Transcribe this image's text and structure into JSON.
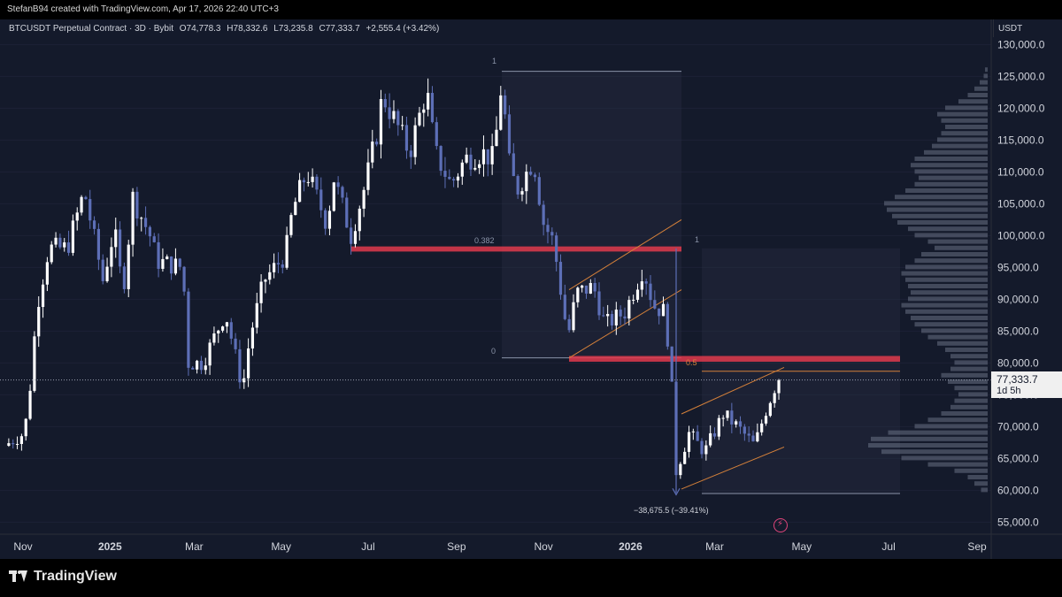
{
  "header": {
    "attribution": "StefanB94 created with TradingView.com, Apr 17, 2026 22:40 UTC+3"
  },
  "footer": {
    "brand": "TradingView"
  },
  "colors": {
    "background": "#141a2b",
    "bull_candle": "#ffffff",
    "bear_candle": "#5d6fb7",
    "resistance_zone": "#e03a4c",
    "channel": "#d4803a",
    "fib_box": "#8a93a8"
  },
  "chart_data": {
    "type": "candlestick",
    "title": "BTCUSDT Perpetual Contract · 3D · Bybit",
    "ohlc": {
      "open_label": "O74,778.3",
      "high_label": "H78,332.6",
      "low_label": "L73,235.8",
      "close_label": "C77,333.7",
      "change_label": "+2,555.4 (+3.42%)"
    },
    "y_axis": {
      "unit": "USDT",
      "ylim": [
        52000,
        132000
      ],
      "ticks": [
        55000,
        60000,
        65000,
        70000,
        75000,
        80000,
        85000,
        90000,
        95000,
        100000,
        105000,
        110000,
        115000,
        120000,
        125000,
        130000
      ],
      "tick_labels": [
        "55,000.0",
        "60,000.0",
        "65,000.0",
        "70,000.0",
        "75,000.0",
        "80,000.0",
        "85,000.0",
        "90,000.0",
        "95,000.0",
        "100,000.0",
        "105,000.0",
        "110,000.0",
        "115,000.0",
        "120,000.0",
        "125,000.0",
        "130,000.0"
      ]
    },
    "x_axis": {
      "range": [
        "2024-10-22",
        "2026-09-20"
      ],
      "ticks": [
        {
          "date": "2024-11-01",
          "label": "Nov",
          "bold": false
        },
        {
          "date": "2025-01-01",
          "label": "2025",
          "bold": true
        },
        {
          "date": "2025-03-01",
          "label": "Mar",
          "bold": false
        },
        {
          "date": "2025-05-01",
          "label": "May",
          "bold": false
        },
        {
          "date": "2025-07-01",
          "label": "Jul",
          "bold": false
        },
        {
          "date": "2025-09-01",
          "label": "Sep",
          "bold": false
        },
        {
          "date": "2025-11-01",
          "label": "Nov",
          "bold": false
        },
        {
          "date": "2026-01-01",
          "label": "2026",
          "bold": true
        },
        {
          "date": "2026-03-01",
          "label": "Mar",
          "bold": false
        },
        {
          "date": "2026-05-01",
          "label": "May",
          "bold": false
        },
        {
          "date": "2026-07-01",
          "label": "Jul",
          "bold": false
        },
        {
          "date": "2026-09-01",
          "label": "Sep",
          "bold": false
        }
      ]
    },
    "price_path": [
      [
        "2024-10-22",
        67000
      ],
      [
        "2024-11-05",
        69000
      ],
      [
        "2024-11-11",
        80000
      ],
      [
        "2024-11-13",
        88000
      ],
      [
        "2024-11-22",
        98000
      ],
      [
        "2024-12-05",
        98000
      ],
      [
        "2024-12-17",
        107000
      ],
      [
        "2024-12-30",
        93000
      ],
      [
        "2025-01-07",
        101000
      ],
      [
        "2025-01-13",
        91000
      ],
      [
        "2025-01-20",
        106000
      ],
      [
        "2025-02-01",
        100000
      ],
      [
        "2025-02-06",
        96000
      ],
      [
        "2025-02-24",
        95000
      ],
      [
        "2025-02-28",
        80000
      ],
      [
        "2025-03-10",
        80000
      ],
      [
        "2025-03-18",
        84000
      ],
      [
        "2025-03-26",
        88000
      ],
      [
        "2025-04-07",
        76000
      ],
      [
        "2025-04-12",
        84000
      ],
      [
        "2025-04-22",
        93000
      ],
      [
        "2025-05-07",
        97000
      ],
      [
        "2025-05-12",
        104000
      ],
      [
        "2025-05-22",
        110000
      ],
      [
        "2025-06-05",
        102000
      ],
      [
        "2025-06-10",
        109000
      ],
      [
        "2025-06-22",
        100000
      ],
      [
        "2025-07-02",
        108000
      ],
      [
        "2025-07-10",
        116000
      ],
      [
        "2025-07-14",
        122000
      ],
      [
        "2025-07-25",
        117000
      ],
      [
        "2025-08-02",
        113000
      ],
      [
        "2025-08-14",
        123000
      ],
      [
        "2025-08-20",
        113000
      ],
      [
        "2025-08-31",
        108000
      ],
      [
        "2025-09-10",
        112000
      ],
      [
        "2025-09-22",
        113000
      ],
      [
        "2025-09-30",
        112000
      ],
      [
        "2025-10-06",
        125000
      ],
      [
        "2025-10-10",
        112000
      ],
      [
        "2025-10-16",
        107000
      ],
      [
        "2025-10-28",
        112000
      ],
      [
        "2025-11-04",
        102000
      ],
      [
        "2025-11-11",
        99000
      ],
      [
        "2025-11-21",
        84000
      ],
      [
        "2025-11-27",
        91000
      ],
      [
        "2025-12-09",
        92000
      ],
      [
        "2025-12-17",
        86000
      ],
      [
        "2025-12-31",
        88000
      ],
      [
        "2026-01-13",
        95000
      ],
      [
        "2026-01-20",
        89000
      ],
      [
        "2026-01-28",
        88000
      ],
      [
        "2026-02-01",
        80000
      ],
      [
        "2026-02-05",
        63000
      ],
      [
        "2026-02-14",
        69000
      ],
      [
        "2026-02-25",
        66000
      ],
      [
        "2026-03-10",
        72000
      ],
      [
        "2026-03-20",
        70000
      ],
      [
        "2026-04-01",
        67000
      ],
      [
        "2026-04-08",
        72000
      ],
      [
        "2026-04-17",
        77333.7
      ]
    ],
    "current_price": {
      "label": "77,333.7",
      "countdown": "1d 5h"
    },
    "fib_retracement": {
      "labels": [
        "1",
        "0.382",
        "0"
      ]
    },
    "fib_box_2": {
      "labels": [
        "1",
        "0.5"
      ]
    },
    "measure": {
      "label": "−38,675.5 (−39.41%)"
    },
    "volume_profile": [
      [
        60000,
        0.05
      ],
      [
        61000,
        0.1
      ],
      [
        62000,
        0.15
      ],
      [
        63000,
        0.25
      ],
      [
        64000,
        0.45
      ],
      [
        65000,
        0.65
      ],
      [
        66000,
        0.8
      ],
      [
        67000,
        0.9
      ],
      [
        68000,
        0.88
      ],
      [
        69000,
        0.75
      ],
      [
        70000,
        0.55
      ],
      [
        71000,
        0.45
      ],
      [
        72000,
        0.35
      ],
      [
        73000,
        0.28
      ],
      [
        74000,
        0.25
      ],
      [
        75000,
        0.22
      ],
      [
        76000,
        0.25
      ],
      [
        77000,
        0.3
      ],
      [
        78000,
        0.35
      ],
      [
        79000,
        0.28
      ],
      [
        80000,
        0.25
      ],
      [
        81000,
        0.28
      ],
      [
        82000,
        0.32
      ],
      [
        83000,
        0.38
      ],
      [
        84000,
        0.45
      ],
      [
        85000,
        0.5
      ],
      [
        86000,
        0.55
      ],
      [
        87000,
        0.58
      ],
      [
        88000,
        0.62
      ],
      [
        89000,
        0.65
      ],
      [
        90000,
        0.6
      ],
      [
        91000,
        0.58
      ],
      [
        92000,
        0.6
      ],
      [
        93000,
        0.62
      ],
      [
        94000,
        0.65
      ],
      [
        95000,
        0.62
      ],
      [
        96000,
        0.55
      ],
      [
        97000,
        0.5
      ],
      [
        98000,
        0.4
      ],
      [
        99000,
        0.45
      ],
      [
        100000,
        0.55
      ],
      [
        101000,
        0.6
      ],
      [
        102000,
        0.68
      ],
      [
        103000,
        0.72
      ],
      [
        104000,
        0.76
      ],
      [
        105000,
        0.78
      ],
      [
        106000,
        0.7
      ],
      [
        107000,
        0.62
      ],
      [
        108000,
        0.55
      ],
      [
        109000,
        0.52
      ],
      [
        110000,
        0.55
      ],
      [
        111000,
        0.58
      ],
      [
        112000,
        0.55
      ],
      [
        113000,
        0.48
      ],
      [
        114000,
        0.42
      ],
      [
        115000,
        0.38
      ],
      [
        116000,
        0.35
      ],
      [
        117000,
        0.32
      ],
      [
        118000,
        0.35
      ],
      [
        119000,
        0.38
      ],
      [
        120000,
        0.32
      ],
      [
        121000,
        0.22
      ],
      [
        122000,
        0.15
      ],
      [
        123000,
        0.1
      ],
      [
        124000,
        0.06
      ],
      [
        125000,
        0.03
      ],
      [
        126000,
        0.02
      ]
    ]
  }
}
